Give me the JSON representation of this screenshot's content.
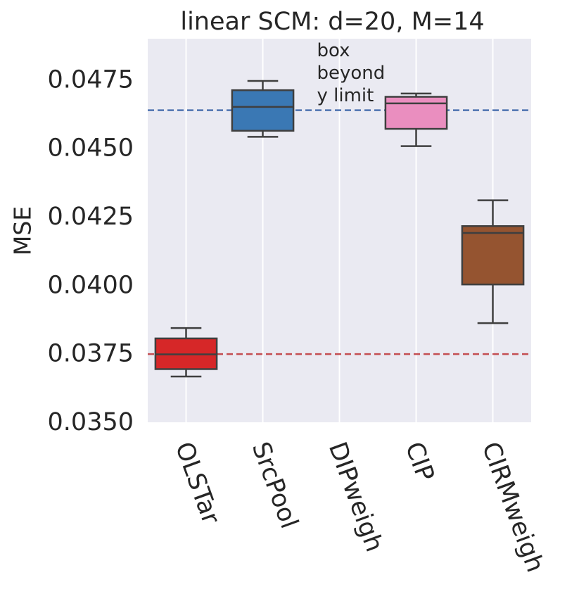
{
  "chart_data": {
    "type": "box",
    "title": "linear SCM: d=20, M=14",
    "xlabel": "",
    "ylabel": "MSE",
    "ylim": [
      0.035,
      0.049
    ],
    "yticks": [
      0.035,
      0.0375,
      0.04,
      0.0425,
      0.045,
      0.0475
    ],
    "ytick_labels": [
      "0.0350",
      "0.0375",
      "0.0400",
      "0.0425",
      "0.0450",
      "0.0475"
    ],
    "categories": [
      "OLSTar",
      "SrcPool",
      "DIPweigh",
      "CIP",
      "CIRMweigh"
    ],
    "boxes": [
      {
        "name": "OLSTar",
        "whisker_low": 0.03667,
        "q1": 0.03694,
        "median": 0.03748,
        "q3": 0.03806,
        "whisker_high": 0.03844,
        "color": "#d62728",
        "visible": true
      },
      {
        "name": "SrcPool",
        "whisker_low": 0.04542,
        "q1": 0.04564,
        "median": 0.04651,
        "q3": 0.04712,
        "whisker_high": 0.04746,
        "color": "#3a78b4",
        "visible": true
      },
      {
        "name": "DIPweigh",
        "visible": false
      },
      {
        "name": "CIP",
        "whisker_low": 0.04508,
        "q1": 0.04571,
        "median": 0.04664,
        "q3": 0.04688,
        "whisker_high": 0.047,
        "color": "#ea8ebf",
        "visible": true
      },
      {
        "name": "CIRMweigh",
        "whisker_low": 0.03862,
        "q1": 0.04003,
        "median": 0.04191,
        "q3": 0.04216,
        "whisker_high": 0.0431,
        "color": "#955430",
        "visible": true
      }
    ],
    "reference_lines": [
      {
        "y": 0.04639,
        "color": "#4c72b0",
        "style": "dashed"
      },
      {
        "y": 0.03749,
        "color": "#c44e52",
        "style": "dashed"
      }
    ],
    "annotation": {
      "category": "DIPweigh",
      "lines": [
        "box",
        "beyond",
        "y limit"
      ]
    },
    "grid": true,
    "background_color": "#eaeaf2"
  }
}
